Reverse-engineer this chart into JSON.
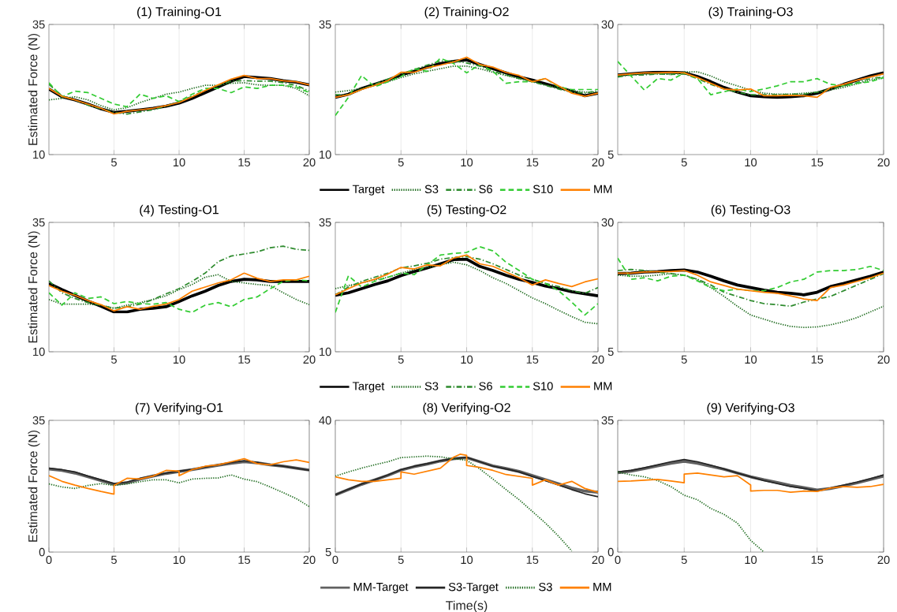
{
  "chart_data": [
    {
      "type": "line",
      "title": "(1) Training-O1",
      "ylabel": "Estimated Force (N)",
      "x": [
        0,
        1,
        2,
        3,
        4,
        5,
        6,
        7,
        8,
        9,
        10,
        11,
        12,
        13,
        14,
        15,
        16,
        17,
        18,
        19,
        20
      ],
      "xlim": [
        0,
        20
      ],
      "ylim": [
        10,
        35
      ],
      "xticks": [
        5,
        10,
        15,
        20
      ],
      "yticks": [
        10,
        35
      ],
      "grid": "x",
      "series": [
        {
          "color": "#000000",
          "line_style": "solid",
          "values": [
            22.6,
            21.1,
            20.5,
            19.7,
            18.8,
            18.1,
            18.3,
            18.6,
            18.9,
            19.3,
            19.9,
            20.8,
            21.9,
            23.0,
            24.1,
            25.0,
            24.8,
            24.6,
            24.2,
            23.9,
            23.4
          ]
        },
        {
          "color": "#1e6b1e",
          "line_style": "dotted",
          "values": [
            20.5,
            20.8,
            21.1,
            20.5,
            19.4,
            18.6,
            19.0,
            20.0,
            20.8,
            21.6,
            22.0,
            22.7,
            23.3,
            23.3,
            23.7,
            23.8,
            23.4,
            23.3,
            23.3,
            22.7,
            21.3
          ]
        },
        {
          "color": "#2e8b2e",
          "line_style": "dashdot",
          "values": [
            23.5,
            21.3,
            20.5,
            19.5,
            18.8,
            18.1,
            17.8,
            18.2,
            18.6,
            19.3,
            20.2,
            21.2,
            22.3,
            23.3,
            24.1,
            24.2,
            24.1,
            24.1,
            23.8,
            23.3,
            22.2
          ]
        },
        {
          "color": "#33cc33",
          "line_style": "dashed",
          "values": [
            23.8,
            21.1,
            22.2,
            21.9,
            20.8,
            19.7,
            19.2,
            21.6,
            20.8,
            21.3,
            20.2,
            21.6,
            22.7,
            22.7,
            21.9,
            23.0,
            22.7,
            23.3,
            23.3,
            23.0,
            21.9
          ]
        },
        {
          "color": "#ff8000",
          "line_style": "solid",
          "values": [
            22.7,
            21.2,
            20.5,
            19.7,
            18.9,
            17.8,
            18.3,
            18.6,
            18.9,
            19.4,
            20.0,
            21.1,
            22.3,
            23.4,
            24.5,
            25.2,
            24.6,
            24.6,
            24.2,
            24.0,
            23.4
          ]
        }
      ]
    },
    {
      "type": "line",
      "title": "(2) Training-O2",
      "x": [
        0,
        1,
        2,
        3,
        4,
        5,
        6,
        7,
        8,
        9,
        10,
        11,
        12,
        13,
        14,
        15,
        16,
        17,
        18,
        19,
        20
      ],
      "xlim": [
        0,
        20
      ],
      "ylim": [
        10,
        35
      ],
      "xticks": [
        5,
        10,
        15,
        20
      ],
      "yticks": [
        10,
        35
      ],
      "grid": "x",
      "legend": "bottom",
      "series": [
        {
          "name": "Target",
          "color": "#000000",
          "line_style": "solid",
          "values": [
            21.0,
            21.6,
            22.7,
            23.5,
            24.3,
            25.3,
            26.0,
            26.8,
            27.5,
            27.9,
            28.2,
            27.3,
            26.5,
            25.7,
            24.9,
            24.3,
            23.6,
            22.9,
            22.2,
            21.3,
            21.8
          ]
        },
        {
          "name": "S3",
          "color": "#1e6b1e",
          "line_style": "dotted",
          "values": [
            22.0,
            22.3,
            22.7,
            23.3,
            24.0,
            24.8,
            25.5,
            26.0,
            26.5,
            27.0,
            27.0,
            26.5,
            25.8,
            25.2,
            24.6,
            24.0,
            23.4,
            22.8,
            22.3,
            22.0,
            22.0
          ]
        },
        {
          "name": "S6",
          "color": "#2e8b2e",
          "line_style": "dashdot",
          "values": [
            21.5,
            21.5,
            22.5,
            23.5,
            24.5,
            25.5,
            26.3,
            27.2,
            28.0,
            28.0,
            27.6,
            27.0,
            26.0,
            25.3,
            24.6,
            24.0,
            23.3,
            22.6,
            22.0,
            21.8,
            22.3
          ]
        },
        {
          "name": "S10",
          "color": "#33cc33",
          "line_style": "dashed",
          "values": [
            17.5,
            21.0,
            25.2,
            23.0,
            24.0,
            25.0,
            26.5,
            26.0,
            28.5,
            27.5,
            25.7,
            27.3,
            26.0,
            23.7,
            24.0,
            24.0,
            24.6,
            23.0,
            22.5,
            22.5,
            22.5
          ]
        },
        {
          "name": "MM",
          "color": "#ff8000",
          "line_style": "solid",
          "values": [
            21.0,
            21.5,
            22.5,
            23.3,
            24.2,
            25.8,
            25.8,
            26.7,
            27.2,
            27.8,
            28.7,
            27.3,
            26.8,
            25.8,
            25.2,
            24.0,
            24.6,
            23.2,
            21.8,
            21.2,
            21.8
          ]
        }
      ]
    },
    {
      "type": "line",
      "title": "(3) Training-O3",
      "x": [
        0,
        1,
        2,
        3,
        4,
        5,
        6,
        7,
        8,
        9,
        10,
        11,
        12,
        13,
        14,
        15,
        16,
        17,
        18,
        19,
        20
      ],
      "xlim": [
        0,
        20
      ],
      "ylim": [
        5,
        30
      ],
      "xticks": [
        5,
        10,
        15,
        20
      ],
      "yticks": [
        5,
        30
      ],
      "grid": "x",
      "series": [
        {
          "color": "#000000",
          "line_style": "solid",
          "values": [
            20.3,
            20.5,
            20.7,
            20.8,
            20.8,
            20.7,
            20.0,
            19.0,
            17.9,
            17.0,
            16.3,
            16.1,
            16.0,
            16.1,
            16.3,
            16.8,
            17.6,
            18.5,
            19.3,
            20.1,
            20.7
          ]
        },
        {
          "color": "#1e6b1e",
          "line_style": "dotted",
          "values": [
            20.1,
            20.3,
            20.5,
            20.5,
            20.4,
            20.9,
            20.9,
            20.1,
            19.0,
            18.2,
            17.4,
            16.8,
            16.6,
            16.6,
            16.8,
            17.0,
            17.4,
            17.9,
            18.6,
            19.3,
            19.7
          ]
        },
        {
          "color": "#2e8b2e",
          "line_style": "dashdot",
          "values": [
            19.9,
            20.3,
            20.3,
            20.5,
            20.4,
            20.5,
            19.6,
            18.5,
            17.6,
            17.0,
            16.5,
            16.5,
            16.5,
            16.6,
            16.6,
            17.0,
            17.6,
            18.2,
            18.8,
            19.6,
            19.9
          ]
        },
        {
          "color": "#33cc33",
          "line_style": "dashed",
          "values": [
            22.9,
            20.1,
            17.4,
            19.6,
            19.3,
            20.7,
            19.6,
            16.5,
            17.1,
            17.6,
            17.1,
            17.6,
            18.2,
            19.0,
            19.0,
            19.6,
            18.5,
            18.2,
            18.7,
            19.0,
            19.8
          ]
        },
        {
          "color": "#ff8000",
          "line_style": "solid",
          "values": [
            20.3,
            20.5,
            20.7,
            20.7,
            20.8,
            20.7,
            19.8,
            18.7,
            17.6,
            17.4,
            17.6,
            16.3,
            16.3,
            16.4,
            16.3,
            16.0,
            17.9,
            18.5,
            19.3,
            19.9,
            20.5
          ]
        }
      ]
    },
    {
      "type": "line",
      "title": "(4) Testing-O1",
      "ylabel": "Estimated Force (N)",
      "x": [
        0,
        1,
        2,
        3,
        4,
        5,
        6,
        7,
        8,
        9,
        10,
        11,
        12,
        13,
        14,
        15,
        16,
        17,
        18,
        19,
        20
      ],
      "xlim": [
        0,
        20
      ],
      "ylim": [
        10,
        35
      ],
      "xticks": [
        5,
        10,
        15,
        20
      ],
      "yticks": [
        10,
        35
      ],
      "grid": "x",
      "series": [
        {
          "color": "#000000",
          "line_style": "solid",
          "values": [
            23.2,
            22.0,
            20.9,
            19.8,
            18.8,
            17.7,
            17.7,
            18.2,
            18.4,
            18.7,
            19.7,
            20.8,
            21.7,
            22.8,
            23.6,
            24.0,
            23.9,
            23.6,
            23.6,
            23.6,
            23.6
          ]
        },
        {
          "color": "#1e6b1e",
          "line_style": "dotted",
          "values": [
            20.1,
            19.2,
            19.2,
            19.2,
            19.0,
            18.4,
            19.0,
            19.5,
            20.1,
            20.8,
            22.0,
            23.0,
            24.4,
            24.9,
            23.6,
            23.3,
            23.0,
            22.8,
            21.4,
            20.1,
            19.1
          ]
        },
        {
          "color": "#2e8b2e",
          "line_style": "dashdot",
          "values": [
            23.7,
            21.4,
            20.3,
            19.5,
            19.0,
            18.4,
            18.7,
            19.2,
            20.1,
            21.2,
            22.2,
            23.6,
            25.2,
            27.4,
            28.5,
            28.9,
            29.3,
            30.1,
            30.4,
            29.8,
            29.6
          ]
        },
        {
          "color": "#33cc33",
          "line_style": "dashed",
          "values": [
            21.4,
            19.0,
            21.4,
            20.3,
            20.6,
            19.3,
            19.7,
            19.3,
            19.2,
            19.5,
            18.2,
            17.6,
            19.0,
            19.5,
            18.7,
            20.1,
            20.6,
            22.2,
            23.6,
            23.9,
            23.7
          ]
        },
        {
          "color": "#ff8000",
          "line_style": "solid",
          "values": [
            22.8,
            21.7,
            20.9,
            19.9,
            19.1,
            17.9,
            18.7,
            18.2,
            18.8,
            19.2,
            20.1,
            21.7,
            22.5,
            23.3,
            23.9,
            25.2,
            24.2,
            23.6,
            23.9,
            23.9,
            24.6
          ]
        }
      ]
    },
    {
      "type": "line",
      "title": "(5) Testing-O2",
      "x": [
        0,
        1,
        2,
        3,
        4,
        5,
        6,
        7,
        8,
        9,
        10,
        11,
        12,
        13,
        14,
        15,
        16,
        17,
        18,
        19,
        20
      ],
      "xlim": [
        0,
        20
      ],
      "ylim": [
        10,
        35
      ],
      "xticks": [
        5,
        10,
        15,
        20
      ],
      "yticks": [
        10,
        35
      ],
      "grid": "x",
      "legend": "bottom",
      "series": [
        {
          "name": "Target",
          "color": "#000000",
          "line_style": "solid",
          "values": [
            20.9,
            21.4,
            22.2,
            23.0,
            23.7,
            24.7,
            25.5,
            26.2,
            27.0,
            27.8,
            27.9,
            26.5,
            25.7,
            24.8,
            24.0,
            23.4,
            22.7,
            22.2,
            21.6,
            21.2,
            20.8
          ]
        },
        {
          "name": "S3",
          "color": "#1e6b1e",
          "line_style": "dotted",
          "values": [
            22.2,
            22.8,
            23.3,
            23.9,
            24.4,
            25.2,
            25.9,
            26.3,
            26.8,
            27.3,
            26.8,
            25.7,
            24.3,
            23.2,
            21.8,
            20.4,
            19.3,
            18.0,
            16.8,
            15.7,
            15.4
          ]
        },
        {
          "name": "S6",
          "color": "#2e8b2e",
          "line_style": "dashdot",
          "values": [
            21.0,
            22.5,
            23.6,
            24.4,
            25.2,
            26.2,
            26.6,
            27.1,
            27.9,
            28.2,
            28.4,
            27.9,
            27.0,
            25.9,
            24.8,
            24.0,
            23.2,
            22.6,
            21.8,
            21.3,
            22.4
          ]
        },
        {
          "name": "S10",
          "color": "#33cc33",
          "line_style": "dashed",
          "values": [
            17.6,
            24.7,
            22.5,
            23.6,
            24.4,
            25.2,
            24.9,
            26.8,
            28.7,
            29.0,
            29.2,
            30.3,
            29.5,
            27.3,
            25.7,
            24.0,
            23.2,
            21.8,
            19.6,
            17.1,
            19.3
          ]
        },
        {
          "name": "MM",
          "color": "#ff8000",
          "line_style": "solid",
          "values": [
            21.0,
            22.2,
            23.3,
            24.0,
            25.0,
            26.3,
            26.0,
            26.8,
            26.6,
            28.1,
            28.7,
            27.0,
            26.5,
            25.4,
            24.3,
            22.9,
            23.9,
            23.2,
            22.6,
            23.5,
            24.1
          ]
        }
      ]
    },
    {
      "type": "line",
      "title": "(6) Testing-O3",
      "x": [
        0,
        1,
        2,
        3,
        4,
        5,
        6,
        7,
        8,
        9,
        10,
        11,
        12,
        13,
        14,
        15,
        16,
        17,
        18,
        19,
        20
      ],
      "xlim": [
        0,
        20
      ],
      "ylim": [
        5,
        30
      ],
      "xticks": [
        5,
        10,
        15,
        20
      ],
      "yticks": [
        5,
        30
      ],
      "grid": "x",
      "series": [
        {
          "color": "#000000",
          "line_style": "solid",
          "values": [
            20.1,
            20.2,
            20.4,
            20.5,
            20.7,
            20.8,
            20.4,
            19.6,
            18.7,
            17.9,
            17.4,
            16.9,
            16.5,
            16.3,
            16.0,
            16.5,
            17.6,
            18.2,
            18.9,
            19.6,
            20.4
          ]
        },
        {
          "color": "#1e6b1e",
          "line_style": "dotted",
          "values": [
            19.8,
            19.6,
            19.6,
            19.8,
            20.1,
            19.8,
            19.0,
            17.4,
            15.7,
            13.8,
            12.1,
            11.3,
            10.5,
            9.9,
            9.7,
            9.8,
            10.2,
            10.8,
            11.6,
            12.7,
            13.8
          ]
        },
        {
          "color": "#2e8b2e",
          "line_style": "dashdot",
          "values": [
            20.7,
            20.9,
            20.7,
            20.4,
            20.1,
            19.8,
            19.0,
            17.9,
            16.5,
            15.7,
            14.9,
            14.3,
            14.1,
            13.8,
            14.6,
            15.2,
            15.7,
            16.8,
            17.9,
            19.0,
            20.1
          ]
        },
        {
          "color": "#33cc33",
          "line_style": "dashed",
          "values": [
            23.1,
            19.0,
            19.3,
            18.7,
            19.6,
            19.8,
            18.7,
            17.4,
            16.8,
            17.1,
            16.8,
            16.8,
            17.4,
            18.5,
            19.0,
            20.4,
            20.7,
            20.7,
            20.9,
            21.5,
            20.7
          ]
        },
        {
          "color": "#ff8000",
          "line_style": "solid",
          "values": [
            20.2,
            20.2,
            20.4,
            20.5,
            20.5,
            20.7,
            19.8,
            18.5,
            17.8,
            17.1,
            16.8,
            16.5,
            16.3,
            15.8,
            15.2,
            14.9,
            17.4,
            17.9,
            18.6,
            19.3,
            20.2
          ]
        }
      ]
    },
    {
      "type": "line",
      "title": "(7) Verifying-O1",
      "ylabel": "Estimated Force (N)",
      "x": [
        0,
        1,
        2,
        3,
        4,
        5,
        6,
        7,
        8,
        9,
        10,
        11,
        12,
        13,
        14,
        15,
        16,
        17,
        18,
        19,
        20
      ],
      "xlim": [
        0,
        20
      ],
      "ylim": [
        0,
        35
      ],
      "xticks": [
        0,
        5,
        10,
        15,
        20
      ],
      "yticks": [
        0,
        35
      ],
      "grid": "x",
      "series": [
        {
          "color": "#606060",
          "line_style": "solid",
          "values": [
            22.1,
            21.7,
            21.0,
            20.0,
            19.0,
            18.0,
            18.4,
            19.4,
            20.2,
            20.9,
            21.4,
            21.9,
            22.5,
            23.1,
            23.6,
            24.0,
            23.7,
            23.2,
            22.8,
            22.3,
            21.8
          ]
        },
        {
          "color": "#262626",
          "line_style": "solid",
          "values": [
            22.3,
            21.9,
            21.3,
            20.2,
            19.2,
            18.2,
            18.6,
            19.6,
            20.3,
            21.0,
            21.5,
            22.0,
            22.6,
            23.2,
            23.8,
            24.3,
            23.8,
            23.2,
            22.8,
            22.3,
            21.7
          ]
        },
        {
          "color": "#1e6b1e",
          "line_style": "dotted",
          "values": [
            18.1,
            17.3,
            16.9,
            17.7,
            18.2,
            17.7,
            18.1,
            18.7,
            19.2,
            19.2,
            18.4,
            19.4,
            19.6,
            19.7,
            20.5,
            19.4,
            18.7,
            17.3,
            15.8,
            14.2,
            12.1
          ]
        },
        {
          "color": "#ff8000",
          "line_style": "solid",
          "x": [
            0,
            1,
            2,
            3,
            4,
            5,
            5,
            6,
            7,
            8,
            9,
            10,
            10,
            11,
            12,
            13,
            14,
            15,
            16,
            17,
            18,
            19,
            20
          ],
          "values": [
            20.3,
            18.8,
            17.8,
            16.9,
            16.1,
            15.4,
            17.7,
            19.6,
            19.4,
            20.2,
            21.7,
            21.5,
            20.3,
            21.9,
            22.8,
            23.2,
            24.0,
            24.8,
            23.5,
            23.2,
            24.0,
            24.5,
            23.8
          ]
        }
      ]
    },
    {
      "type": "line",
      "title": "(8) Verifying-O2",
      "xlabel": "Time(s)",
      "x": [
        0,
        1,
        2,
        3,
        4,
        5,
        6,
        7,
        8,
        9,
        10,
        11,
        12,
        13,
        14,
        15,
        16,
        17,
        18,
        19,
        20
      ],
      "xlim": [
        0,
        20
      ],
      "ylim": [
        5,
        40
      ],
      "xticks": [
        0,
        5,
        10,
        15,
        20
      ],
      "yticks": [
        5,
        40
      ],
      "grid": "x",
      "legend": "bottom",
      "series": [
        {
          "name": "MM-Target",
          "color": "#606060",
          "line_style": "solid",
          "values": [
            20.2,
            21.6,
            23.0,
            24.2,
            25.4,
            26.8,
            27.7,
            28.4,
            29.2,
            29.8,
            30.1,
            29.0,
            27.9,
            27.2,
            26.4,
            25.3,
            24.2,
            23.1,
            22.0,
            21.2,
            20.9
          ]
        },
        {
          "name": "S3-Target",
          "color": "#262626",
          "line_style": "solid",
          "values": [
            20.2,
            21.7,
            23.1,
            24.2,
            25.5,
            26.9,
            27.8,
            28.5,
            29.3,
            29.8,
            30.2,
            29.0,
            27.8,
            27.1,
            26.3,
            25.1,
            24.0,
            22.8,
            21.6,
            20.5,
            19.7
          ]
        },
        {
          "name": "S3",
          "color": "#1e6b1e",
          "line_style": "dotted",
          "values": [
            25.2,
            26.3,
            27.3,
            28.2,
            29.0,
            30.1,
            30.3,
            30.5,
            30.3,
            29.8,
            29.4,
            27.1,
            24.4,
            21.6,
            18.9,
            15.8,
            12.7,
            9.2,
            5.3,
            null,
            null
          ]
        },
        {
          "name": "MM",
          "color": "#ff8000",
          "line_style": "solid",
          "x": [
            0,
            1,
            2,
            3,
            4,
            5,
            5,
            6,
            7,
            8,
            9,
            9.5,
            10,
            10,
            11,
            12,
            13,
            14,
            15,
            15,
            16,
            17,
            18,
            19,
            20
          ],
          "values": [
            25.0,
            24.2,
            23.8,
            23.8,
            24.2,
            24.6,
            26.3,
            25.7,
            26.5,
            27.3,
            30.2,
            31.0,
            30.7,
            28.0,
            27.5,
            26.7,
            25.6,
            25.1,
            24.6,
            22.8,
            24.2,
            22.8,
            23.8,
            21.9,
            20.9
          ]
        }
      ]
    },
    {
      "type": "line",
      "title": "(9) Verifying-O3",
      "x": [
        0,
        1,
        2,
        3,
        4,
        5,
        6,
        7,
        8,
        9,
        10,
        11,
        12,
        13,
        14,
        15,
        16,
        17,
        18,
        19,
        20
      ],
      "xlim": [
        0,
        20
      ],
      "ylim": [
        0,
        35
      ],
      "xticks": [
        0,
        5,
        10,
        15,
        20
      ],
      "yticks": [
        0,
        35
      ],
      "grid": "x",
      "series": [
        {
          "color": "#606060",
          "line_style": "solid",
          "values": [
            21.1,
            21.5,
            22.2,
            22.9,
            23.6,
            24.1,
            23.6,
            22.8,
            22.0,
            21.0,
            20.0,
            19.2,
            18.5,
            17.7,
            17.1,
            16.5,
            16.9,
            17.6,
            18.4,
            19.3,
            20.2
          ]
        },
        {
          "color": "#262626",
          "line_style": "solid",
          "values": [
            21.3,
            21.7,
            22.4,
            23.2,
            24.0,
            24.6,
            24.0,
            23.1,
            22.1,
            21.0,
            20.0,
            19.0,
            18.2,
            17.4,
            16.9,
            16.2,
            17.0,
            17.8,
            18.6,
            19.5,
            20.5
          ]
        },
        {
          "color": "#1e6b1e",
          "line_style": "dotted",
          "values": [
            21.3,
            20.5,
            20.0,
            19.0,
            17.4,
            15.1,
            13.9,
            11.6,
            10.0,
            7.7,
            3.1,
            0,
            null,
            null,
            null,
            null,
            null,
            null,
            null,
            null,
            null
          ]
        },
        {
          "color": "#ff8000",
          "line_style": "solid",
          "x": [
            0,
            1,
            2,
            3,
            4,
            5,
            5,
            6,
            7,
            8,
            9,
            10,
            10,
            11,
            12,
            13,
            14,
            15,
            16,
            17,
            18,
            19,
            20
          ],
          "values": [
            18.8,
            18.9,
            19.1,
            19.3,
            18.9,
            18.4,
            20.7,
            21.0,
            20.5,
            20.0,
            20.3,
            17.8,
            16.2,
            16.4,
            16.4,
            15.9,
            16.2,
            16.1,
            17.0,
            17.4,
            17.2,
            17.4,
            18.0
          ]
        }
      ]
    }
  ]
}
